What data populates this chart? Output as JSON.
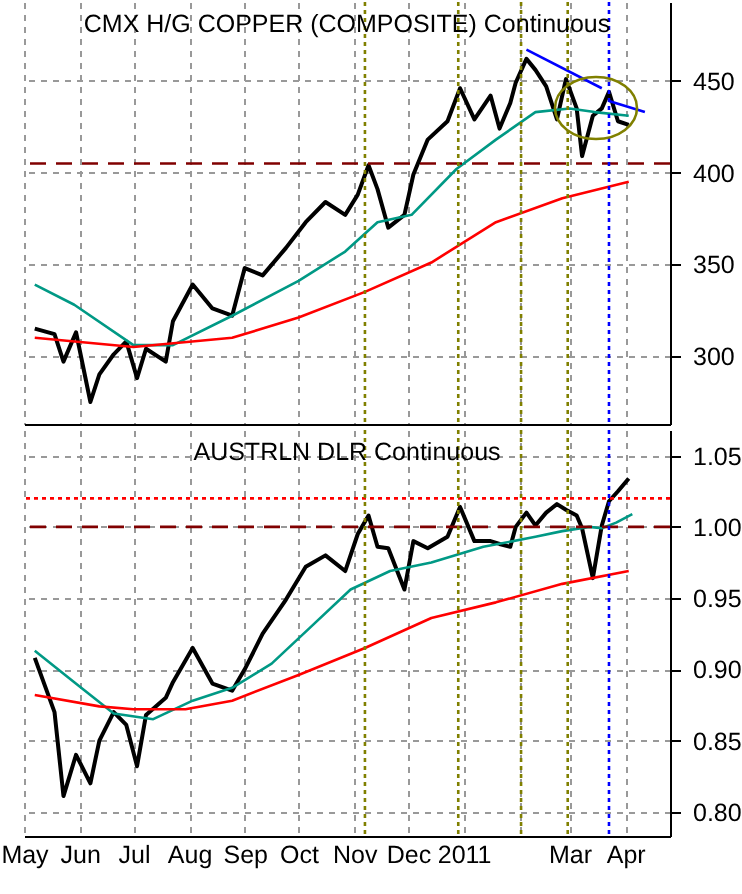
{
  "chart_data": [
    {
      "type": "line",
      "title": "CMX H/G COPPER (COMPOSITE) Continuous",
      "x": [
        "2010-05-07",
        "2010-05-18",
        "2010-05-23",
        "2010-05-30",
        "2010-06-07",
        "2010-06-12",
        "2010-06-20",
        "2010-06-27",
        "2010-07-03",
        "2010-07-08",
        "2010-07-19",
        "2010-07-23",
        "2010-08-03",
        "2010-08-14",
        "2010-08-25",
        "2010-09-01",
        "2010-09-11",
        "2010-09-24",
        "2010-10-05",
        "2010-10-16",
        "2010-10-27",
        "2010-11-03",
        "2010-11-09",
        "2010-11-14",
        "2010-11-20",
        "2010-11-29",
        "2010-12-04",
        "2010-12-12",
        "2010-12-23",
        "2010-12-30",
        "2011-01-07",
        "2011-01-16",
        "2011-01-21",
        "2011-01-27",
        "2011-01-30",
        "2011-02-05",
        "2011-02-10",
        "2011-02-16",
        "2011-02-22",
        "2011-02-27",
        "2011-03-05",
        "2011-03-08",
        "2011-03-14",
        "2011-03-19",
        "2011-03-23",
        "2011-03-28",
        "2011-04-03"
      ],
      "series": [
        {
          "color": "#000000",
          "values": [
            315,
            312,
            297,
            313,
            275,
            290,
            301,
            308,
            288,
            304,
            297,
            319,
            339,
            326,
            322,
            348,
            344,
            359,
            373,
            384,
            377,
            388,
            404,
            391,
            370,
            377,
            399,
            418,
            428,
            446,
            429,
            442,
            424,
            438,
            449,
            462,
            456,
            447,
            429,
            451,
            435,
            409,
            431,
            435,
            444,
            428,
            426
          ]
        },
        {
          "color": "#009985",
          "x": [
            "2010-05-07",
            "2010-05-29",
            "2010-07-01",
            "2010-07-23",
            "2010-08-25",
            "2010-10-01",
            "2010-10-27",
            "2010-11-14",
            "2010-12-03",
            "2010-12-28",
            "2011-01-19",
            "2011-02-10",
            "2011-03-01",
            "2011-03-15",
            "2011-04-03"
          ],
          "values": [
            339,
            328,
            306,
            306,
            322,
            341,
            357,
            373,
            377,
            402,
            418,
            433,
            435,
            433,
            431
          ]
        },
        {
          "color": "#ff0000",
          "x": [
            "2010-05-07",
            "2010-07-01",
            "2010-08-25",
            "2010-10-01",
            "2010-11-07",
            "2010-12-14",
            "2011-01-19",
            "2011-02-25",
            "2011-04-03"
          ],
          "values": [
            310,
            305,
            310,
            321,
            335,
            351,
            373,
            386,
            395
          ]
        },
        {
          "type": "line",
          "color": "#0000ff",
          "x": [
            "2011-02-05",
            "2011-03-19"
          ],
          "values": [
            467,
            446
          ]
        },
        {
          "type": "line",
          "color": "#0000ff",
          "x": [
            "2011-03-23",
            "2011-04-12"
          ],
          "values": [
            439,
            433
          ]
        }
      ],
      "xlim": [
        "2010-05-01",
        "2011-04-26"
      ],
      "xticks": [
        {
          "value": "2010-05-01",
          "label": null
        },
        {
          "value": "2010-06-01",
          "label": null
        },
        {
          "value": "2010-07-01",
          "label": null
        },
        {
          "value": "2010-08-01",
          "label": null
        },
        {
          "value": "2010-09-01",
          "label": null
        },
        {
          "value": "2010-10-01",
          "label": null
        },
        {
          "value": "2010-11-01",
          "label": null
        },
        {
          "value": "2010-12-01",
          "label": null
        },
        {
          "value": "2011-01-01",
          "label": null
        },
        {
          "value": "2011-02-01",
          "label": null
        },
        {
          "value": "2011-03-01",
          "label": null
        },
        {
          "value": "2011-04-01",
          "label": null
        }
      ],
      "ylim": [
        263,
        493
      ],
      "yticks": [
        300,
        350,
        400,
        450
      ],
      "tick_labels": "y",
      "grid": true,
      "marker": "none",
      "ref_lines": [
        {
          "axis": "y",
          "value": 405,
          "color": "#800000",
          "line_style": "dashed"
        },
        {
          "axis": "x",
          "value": "2010-11-07",
          "color": "#808000",
          "line_style": "dotted"
        },
        {
          "axis": "x",
          "value": "2010-12-29",
          "color": "#808000",
          "line_style": "dotted"
        },
        {
          "axis": "x",
          "value": "2011-02-02",
          "color": "#808000",
          "line_style": "dotted"
        },
        {
          "axis": "x",
          "value": "2011-02-28",
          "color": "#808000",
          "line_style": "dotted"
        },
        {
          "axis": "x",
          "value": "2011-03-23",
          "color": "#0000ff",
          "line_style": "dotted"
        }
      ]
    },
    {
      "type": "line",
      "title": "AUSTRLN DLR Continuous",
      "x": [
        "2010-05-07",
        "2010-05-18",
        "2010-05-23",
        "2010-05-30",
        "2010-06-07",
        "2010-06-12",
        "2010-06-20",
        "2010-06-27",
        "2010-07-03",
        "2010-07-08",
        "2010-07-19",
        "2010-07-23",
        "2010-08-03",
        "2010-08-14",
        "2010-08-25",
        "2010-09-01",
        "2010-09-11",
        "2010-09-24",
        "2010-10-05",
        "2010-10-16",
        "2010-10-27",
        "2010-11-03",
        "2010-11-09",
        "2010-11-14",
        "2010-11-20",
        "2010-11-29",
        "2010-12-04",
        "2010-12-12",
        "2010-12-23",
        "2010-12-30",
        "2011-01-07",
        "2011-01-16",
        "2011-01-21",
        "2011-01-27",
        "2011-01-30",
        "2011-02-05",
        "2011-02-10",
        "2011-02-16",
        "2011-02-22",
        "2011-02-27",
        "2011-03-05",
        "2011-03-08",
        "2011-03-14",
        "2011-03-19",
        "2011-03-23",
        "2011-03-28",
        "2011-04-03"
      ],
      "series": [
        {
          "color": "#000000",
          "values": [
            0.908,
            0.87,
            0.811,
            0.84,
            0.82,
            0.85,
            0.87,
            0.861,
            0.832,
            0.868,
            0.88,
            0.891,
            0.915,
            0.89,
            0.885,
            0.9,
            0.925,
            0.949,
            0.972,
            0.98,
            0.969,
            0.995,
            1.008,
            0.986,
            0.985,
            0.956,
            0.99,
            0.985,
            0.993,
            1.014,
            0.99,
            0.99,
            0.988,
            0.986,
            1.0,
            1.01,
            1.001,
            1.01,
            1.016,
            1.012,
            1.008,
            0.999,
            0.964,
            1.001,
            1.018,
            1.025,
            1.034
          ]
        },
        {
          "color": "#009985",
          "x": [
            "2010-05-07",
            "2010-05-29",
            "2010-06-20",
            "2010-07-12",
            "2010-08-03",
            "2010-08-25",
            "2010-09-16",
            "2010-10-08",
            "2010-10-30",
            "2010-11-21",
            "2010-12-14",
            "2011-01-12",
            "2011-02-10",
            "2011-02-25",
            "2011-03-12",
            "2011-03-19",
            "2011-03-27",
            "2011-04-05"
          ],
          "values": [
            0.913,
            0.891,
            0.869,
            0.865,
            0.878,
            0.887,
            0.904,
            0.93,
            0.956,
            0.969,
            0.975,
            0.986,
            0.993,
            0.997,
            1.0,
            0.999,
            1.003,
            1.009
          ]
        },
        {
          "color": "#ff0000",
          "x": [
            "2010-05-07",
            "2010-06-12",
            "2010-07-01",
            "2010-07-30",
            "2010-08-25",
            "2010-10-01",
            "2010-11-07",
            "2010-12-14",
            "2011-01-19",
            "2011-02-25",
            "2011-04-03"
          ],
          "values": [
            0.882,
            0.874,
            0.872,
            0.872,
            0.878,
            0.896,
            0.915,
            0.936,
            0.947,
            0.96,
            0.969
          ]
        }
      ],
      "xlim": [
        "2010-05-01",
        "2011-04-26"
      ],
      "xticks": [
        {
          "value": "2010-05-01",
          "label": "May"
        },
        {
          "value": "2010-06-01",
          "label": "Jun"
        },
        {
          "value": "2010-07-01",
          "label": "Jul"
        },
        {
          "value": "2010-08-01",
          "label": "Aug"
        },
        {
          "value": "2010-09-01",
          "label": "Sep"
        },
        {
          "value": "2010-10-01",
          "label": "Oct"
        },
        {
          "value": "2010-11-01",
          "label": "Nov"
        },
        {
          "value": "2010-12-01",
          "label": "Dec"
        },
        {
          "value": "2011-01-01",
          "label": "2011"
        },
        {
          "value": "2011-02-01",
          "label": null
        },
        {
          "value": "2011-03-01",
          "label": "Mar"
        },
        {
          "value": "2011-04-01",
          "label": "Apr"
        }
      ],
      "ylim": [
        0.783,
        1.068
      ],
      "yticks": [
        {
          "value": 0.8,
          "label": "0.80"
        },
        {
          "value": 0.85,
          "label": "0.85"
        },
        {
          "value": 0.9,
          "label": "0.90"
        },
        {
          "value": 0.95,
          "label": "0.95"
        },
        {
          "value": 1.0,
          "label": "1.00"
        },
        {
          "value": 1.05,
          "label": "1.05"
        }
      ],
      "grid": true,
      "marker": "none",
      "ref_lines": [
        {
          "axis": "y",
          "value": 1.0,
          "color": "#800000",
          "line_style": "dashed"
        },
        {
          "axis": "y",
          "value": 1.02,
          "color": "#ff0000",
          "line_style": "dotted"
        },
        {
          "axis": "x",
          "value": "2010-11-07",
          "color": "#808000",
          "line_style": "dotted"
        },
        {
          "axis": "x",
          "value": "2010-12-29",
          "color": "#808000",
          "line_style": "dotted"
        },
        {
          "axis": "x",
          "value": "2011-02-02",
          "color": "#808000",
          "line_style": "dotted"
        },
        {
          "axis": "x",
          "value": "2011-02-28",
          "color": "#808000",
          "line_style": "dotted"
        },
        {
          "axis": "x",
          "value": "2011-03-23",
          "color": "#0000ff",
          "line_style": "dotted"
        }
      ]
    }
  ]
}
